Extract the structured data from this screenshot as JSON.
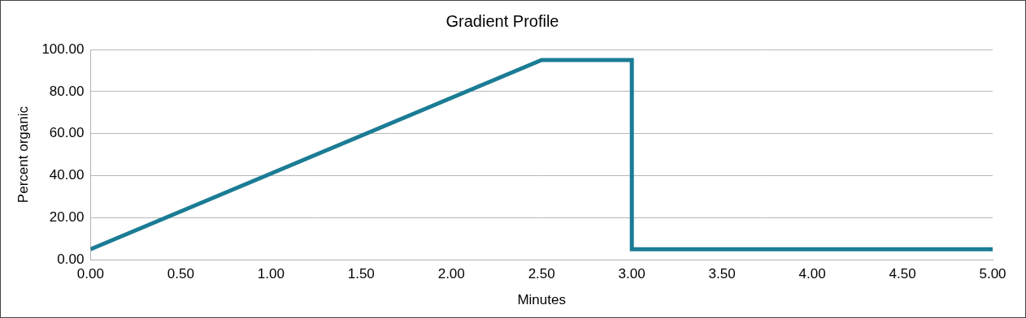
{
  "chart_data": {
    "type": "line",
    "title": "Gradient Profile",
    "x_label": "Minutes",
    "y_label": "Percent organic",
    "x": [
      0,
      2.5,
      3,
      3,
      5
    ],
    "values": [
      5,
      95,
      95,
      5,
      5
    ],
    "color": "#1b7c95",
    "xlim": [
      0,
      5
    ],
    "xticks": [
      {
        "value": 0,
        "label": "0.00"
      },
      {
        "value": 0.5,
        "label": "0.50"
      },
      {
        "value": 1,
        "label": "1.00"
      },
      {
        "value": 1.5,
        "label": "1.50"
      },
      {
        "value": 2,
        "label": "2.00"
      },
      {
        "value": 2.5,
        "label": "2.50"
      },
      {
        "value": 3,
        "label": "3.00"
      },
      {
        "value": 3.5,
        "label": "3.50"
      },
      {
        "value": 4,
        "label": "4.00"
      },
      {
        "value": 4.5,
        "label": "4.50"
      },
      {
        "value": 5,
        "label": "5.00"
      }
    ],
    "ylim": [
      0,
      100
    ],
    "yticks": [
      {
        "value": 0,
        "label": "0.00"
      },
      {
        "value": 20,
        "label": "20.00"
      },
      {
        "value": 40,
        "label": "40.00"
      },
      {
        "value": 60,
        "label": "60.00"
      },
      {
        "value": 80,
        "label": "80.00"
      },
      {
        "value": 100,
        "label": "100.00"
      }
    ],
    "grid": "y"
  }
}
